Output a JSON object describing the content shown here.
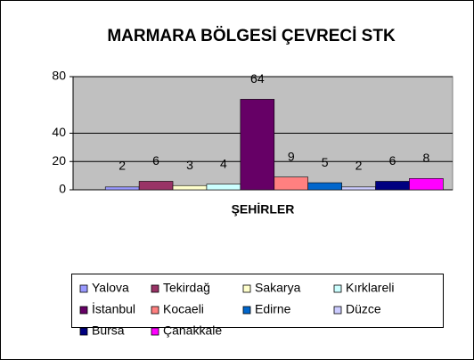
{
  "chart_data": {
    "type": "bar",
    "title": "MARMARA BÖLGESİ ÇEVRECİ STK",
    "categories": [
      "ŞEHİRLER"
    ],
    "series": [
      {
        "name": "Yalova",
        "color": "#9999ff",
        "values": [
          2
        ]
      },
      {
        "name": "Tekirdağ",
        "color": "#993366",
        "values": [
          6
        ]
      },
      {
        "name": "Sakarya",
        "color": "#ffffcc",
        "values": [
          3
        ]
      },
      {
        "name": "Kırklareli",
        "color": "#ccffff",
        "values": [
          4
        ]
      },
      {
        "name": "İstanbul",
        "color": "#660066",
        "values": [
          64
        ]
      },
      {
        "name": "Kocaeli",
        "color": "#ff8080",
        "values": [
          9
        ]
      },
      {
        "name": "Edirne",
        "color": "#0066cc",
        "values": [
          5
        ]
      },
      {
        "name": "Düzce",
        "color": "#ccccff",
        "values": [
          2
        ]
      },
      {
        "name": "Bursa",
        "color": "#000080",
        "values": [
          6
        ]
      },
      {
        "name": "Çanakkale",
        "color": "#ff00ff",
        "values": [
          8
        ]
      }
    ],
    "ylim": [
      0,
      80
    ],
    "yticks": [
      0,
      20,
      40,
      80
    ],
    "grid": true,
    "legend": "bottom"
  }
}
